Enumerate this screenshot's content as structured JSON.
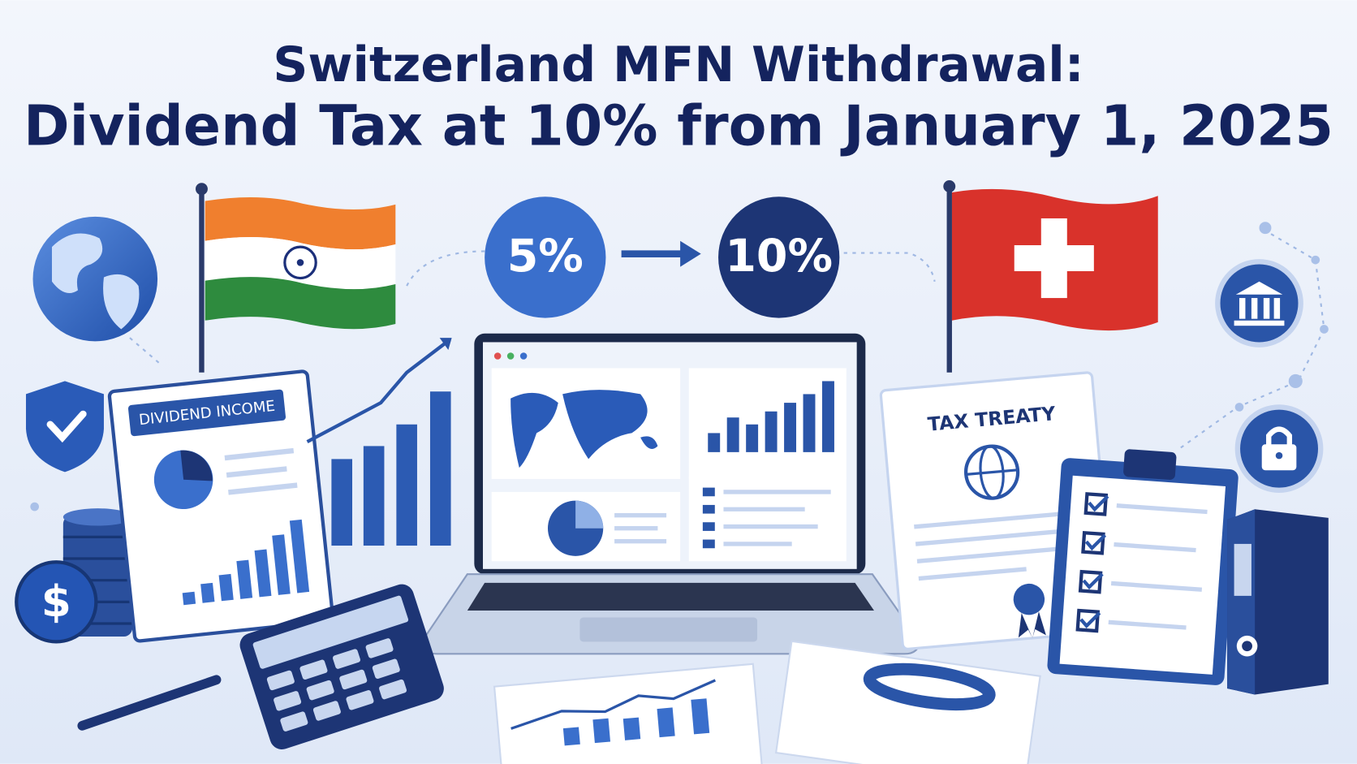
{
  "title": {
    "line1": "Switzerland MFN Withdrawal:",
    "line2": "Dividend Tax at 10% from January 1, 2025"
  },
  "rate_change": {
    "from": "5%",
    "to": "10%"
  },
  "documents": {
    "left_label": "DIVIDEND INCOME",
    "right_label": "TAX TREATY"
  },
  "coin_symbol": "$"
}
